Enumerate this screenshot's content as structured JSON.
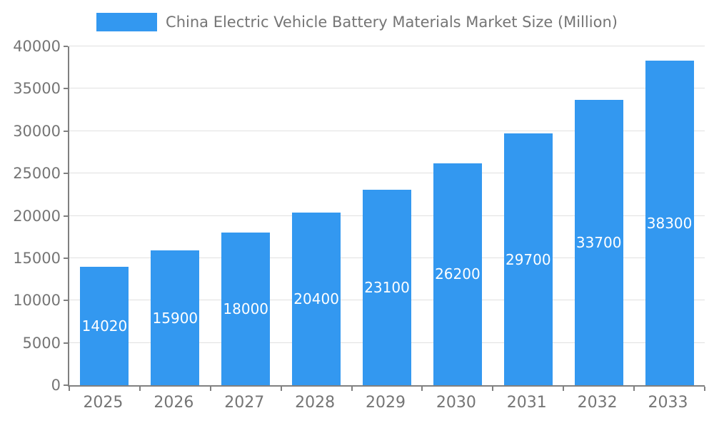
{
  "chart_data": {
    "type": "bar",
    "title": "China Electric Vehicle Battery Materials Market Size (Million)",
    "categories": [
      "2025",
      "2026",
      "2027",
      "2028",
      "2029",
      "2030",
      "2031",
      "2032",
      "2033"
    ],
    "values": [
      14020,
      15900,
      18000,
      20400,
      23100,
      26200,
      29700,
      33700,
      38300
    ],
    "xlabel": "",
    "ylabel": "",
    "ylim": [
      0,
      40000
    ],
    "yticks": [
      0,
      5000,
      10000,
      15000,
      20000,
      25000,
      30000,
      35000,
      40000
    ],
    "grid": true,
    "legend_position": "top",
    "bar_color": "#3398f0",
    "bar_label_color": "#ffffff",
    "axis_text_color": "#757575",
    "grid_color": "#e0e0e0",
    "axis_line_color": "#808080"
  }
}
